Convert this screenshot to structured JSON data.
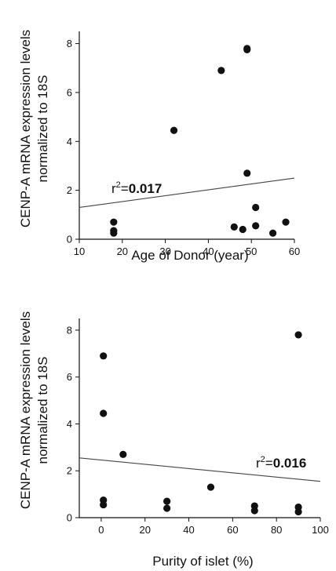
{
  "chart_data": [
    {
      "type": "scatter",
      "xlabel": "Age of Donor (year)",
      "ylabel_lines": [
        "CENP-A mRNA expression levels",
        "normalized to 18S"
      ],
      "xlim": [
        10,
        60
      ],
      "ylim": [
        0,
        8.5
      ],
      "x_ticks": [
        10,
        20,
        30,
        40,
        50,
        60
      ],
      "x_tick_labels": [
        "10",
        "20",
        "30",
        "40",
        "50",
        "60"
      ],
      "y_ticks": [
        0,
        2,
        4,
        6,
        8
      ],
      "y_tick_labels": [
        "0",
        "2",
        "4",
        "6",
        "8"
      ],
      "grid": false,
      "series": [
        {
          "points": [
            {
              "x": 18,
              "y": 0.7
            },
            {
              "x": 18,
              "y": 0.35
            },
            {
              "x": 18,
              "y": 0.25
            },
            {
              "x": 32,
              "y": 4.45
            },
            {
              "x": 43,
              "y": 6.9
            },
            {
              "x": 49,
              "y": 7.8
            },
            {
              "x": 49,
              "y": 7.75
            },
            {
              "x": 49,
              "y": 2.7
            },
            {
              "x": 46,
              "y": 0.5
            },
            {
              "x": 48,
              "y": 0.4
            },
            {
              "x": 51,
              "y": 1.3
            },
            {
              "x": 51,
              "y": 0.55
            },
            {
              "x": 55,
              "y": 0.25
            },
            {
              "x": 58,
              "y": 0.7
            }
          ]
        }
      ],
      "trendline": {
        "x": [
          10,
          60
        ],
        "y": [
          1.3,
          2.5
        ]
      },
      "annotation": {
        "prefix": "r",
        "sup": "2",
        "equals": "=",
        "value": "0.017"
      }
    },
    {
      "type": "scatter",
      "xlabel": "Purity of islet (%)",
      "ylabel_lines": [
        "CENP-A mRNA expression levels",
        "normalized to 18S"
      ],
      "xlim": [
        -10,
        100
      ],
      "ylim": [
        0,
        8.5
      ],
      "x_ticks": [
        0,
        20,
        40,
        60,
        80,
        100
      ],
      "x_tick_labels": [
        "0",
        "20",
        "40",
        "60",
        "80",
        "100"
      ],
      "y_ticks": [
        0,
        2,
        4,
        6,
        8
      ],
      "y_tick_labels": [
        "0",
        "2",
        "4",
        "6",
        "8"
      ],
      "grid": false,
      "series": [
        {
          "points": [
            {
              "x": 1,
              "y": 6.9
            },
            {
              "x": 1,
              "y": 4.45
            },
            {
              "x": 1,
              "y": 0.75
            },
            {
              "x": 1,
              "y": 0.55
            },
            {
              "x": 10,
              "y": 2.7
            },
            {
              "x": 30,
              "y": 0.7
            },
            {
              "x": 30,
              "y": 0.4
            },
            {
              "x": 50,
              "y": 1.3
            },
            {
              "x": 70,
              "y": 0.5
            },
            {
              "x": 70,
              "y": 0.3
            },
            {
              "x": 90,
              "y": 7.8
            },
            {
              "x": 90,
              "y": 0.45
            },
            {
              "x": 90,
              "y": 0.25
            }
          ]
        }
      ],
      "trendline": {
        "x": [
          -10,
          100
        ],
        "y": [
          2.55,
          1.55
        ]
      },
      "annotation": {
        "prefix": "r",
        "sup": "2",
        "equals": "=",
        "value": "0.016"
      }
    }
  ]
}
